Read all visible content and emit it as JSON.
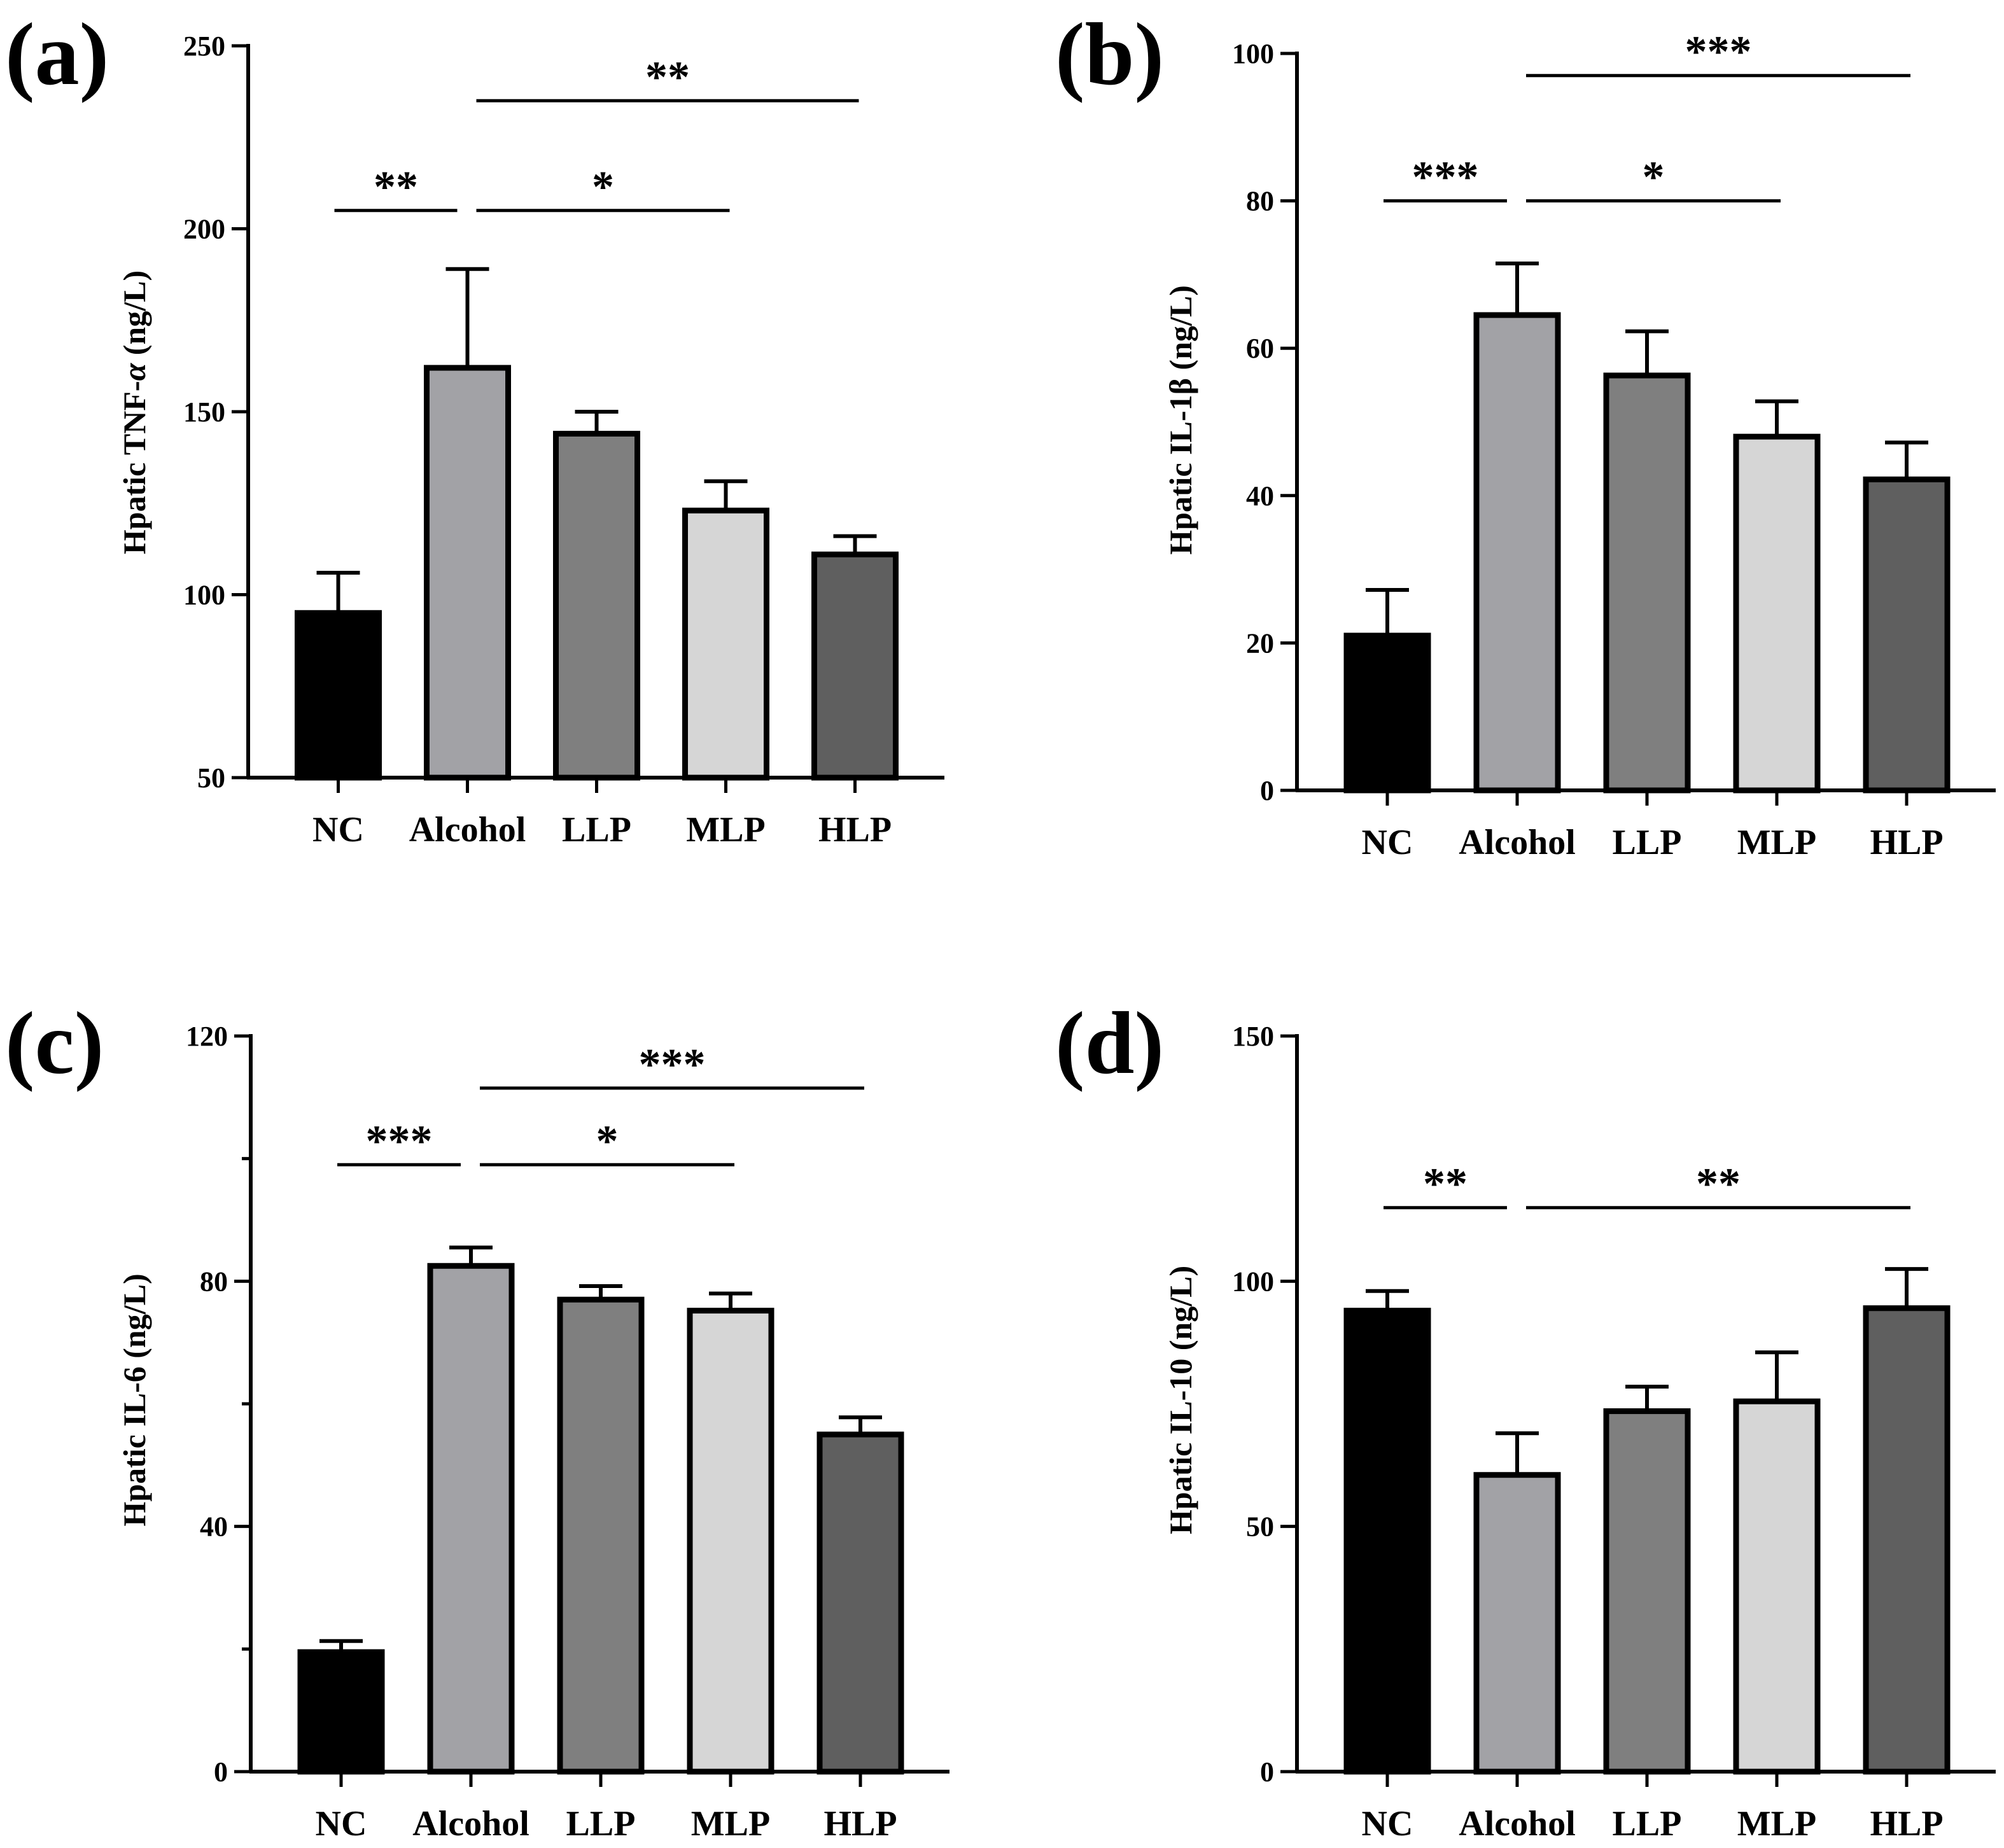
{
  "figure": {
    "group_colors": [
      "#000000",
      "#a2a2a6",
      "#7f7f7f",
      "#d6d6d6",
      "#5f5f5f"
    ]
  },
  "chart_data": [
    {
      "type": "bar",
      "panel_label": "(a)",
      "categories": [
        "NC",
        "Alcohol",
        "LLP",
        "MLP",
        "HLP"
      ],
      "values": [
        95,
        162,
        144,
        123,
        111
      ],
      "errors": [
        11,
        27,
        6,
        8,
        5
      ],
      "ylabel_prefix": "Hpatic TNF-",
      "ylabel_greek": "α",
      "ylabel_suffix": " (ng/L)",
      "ylim": [
        50,
        250
      ],
      "yticks": [
        50,
        100,
        150,
        200,
        250
      ],
      "ytick_labels": [
        "50",
        "100",
        "150",
        "200",
        "250"
      ],
      "minor_yticks": [],
      "significance": [
        {
          "from": 0,
          "to": 1,
          "y": 205,
          "stars": "**"
        },
        {
          "from": 1,
          "to": 3,
          "y": 205,
          "stars": "*"
        },
        {
          "from": 1,
          "to": 4,
          "y": 235,
          "stars": "**"
        }
      ]
    },
    {
      "type": "bar",
      "panel_label": "(b)",
      "categories": [
        "NC",
        "Alcohol",
        "LLP",
        "MLP",
        "HLP"
      ],
      "values": [
        21,
        64.5,
        56.3,
        48,
        42.2
      ],
      "errors": [
        6.2,
        7,
        6,
        4.8,
        5
      ],
      "ylabel_prefix": "Hpatic IL-1β",
      "ylabel_greek": "",
      "ylabel_suffix": " (ng/L)",
      "ylim": [
        0,
        100
      ],
      "yticks": [
        0,
        20,
        40,
        60,
        80,
        100
      ],
      "ytick_labels": [
        "0",
        "20",
        "40",
        "60",
        "80",
        "100"
      ],
      "minor_yticks": [],
      "significance": [
        {
          "from": 0,
          "to": 1,
          "y": 80,
          "stars": "***"
        },
        {
          "from": 1,
          "to": 3,
          "y": 80,
          "stars": "*"
        },
        {
          "from": 1,
          "to": 4,
          "y": 97,
          "stars": "***"
        }
      ]
    },
    {
      "type": "bar",
      "panel_label": "(c)",
      "categories": [
        "NC",
        "Alcohol",
        "LLP",
        "MLP",
        "HLP"
      ],
      "values": [
        19.5,
        82.5,
        77,
        75.2,
        55
      ],
      "errors": [
        1.8,
        3,
        2.2,
        2.8,
        2.8
      ],
      "ylabel_prefix": "Hpatic IL-6",
      "ylabel_greek": "",
      "ylabel_suffix": " (ng/L)",
      "ylim": [
        0,
        120
      ],
      "yticks": [
        0,
        40,
        80,
        120
      ],
      "ytick_labels": [
        "0",
        "40",
        "80",
        "120"
      ],
      "minor_yticks": [
        20,
        60,
        100
      ],
      "significance": [
        {
          "from": 0,
          "to": 1,
          "y": 99,
          "stars": "***"
        },
        {
          "from": 1,
          "to": 3,
          "y": 99,
          "stars": "*"
        },
        {
          "from": 1,
          "to": 4,
          "y": 111.5,
          "stars": "***"
        }
      ]
    },
    {
      "type": "bar",
      "panel_label": "(d)",
      "categories": [
        "NC",
        "Alcohol",
        "LLP",
        "MLP",
        "HLP"
      ],
      "values": [
        94,
        60.5,
        73.5,
        75.5,
        94.5
      ],
      "errors": [
        4,
        8.5,
        5,
        10,
        8
      ],
      "ylabel_prefix": "Hpatic IL-10",
      "ylabel_greek": "",
      "ylabel_suffix": " (ng/L)",
      "ylim": [
        0,
        150
      ],
      "yticks": [
        0,
        50,
        100,
        150
      ],
      "ytick_labels": [
        "0",
        "50",
        "100",
        "150"
      ],
      "minor_yticks": [],
      "significance": [
        {
          "from": 0,
          "to": 1,
          "y": 115,
          "stars": "**"
        },
        {
          "from": 1,
          "to": 4,
          "y": 115,
          "stars": "**"
        }
      ]
    }
  ]
}
